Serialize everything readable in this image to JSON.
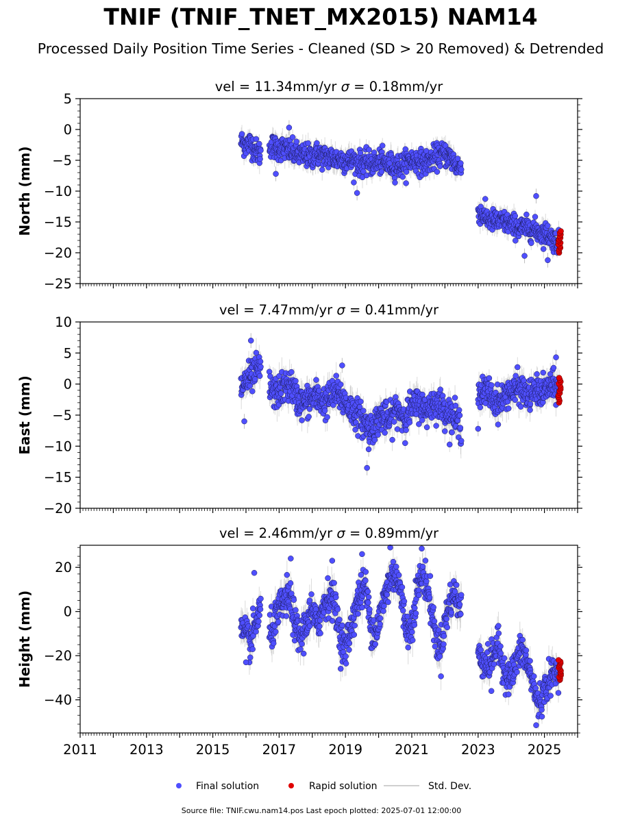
{
  "figure": {
    "title": "TNIF (TNIF_TNET_MX2015) NAM14",
    "subtitle": "Processed Daily Position Time Series - Cleaned (SD > 20 Removed) & Detrended",
    "footer": "Source file: TNIF.cwu.nam14.pos  Last epoch plotted: 2025-07-01 12:00:00"
  },
  "colors": {
    "final_solution": "#4f4fff",
    "rapid_solution": "#e00000",
    "std_dev": "#bdbdbd"
  },
  "legend": {
    "final_label": "Final solution",
    "rapid_label": "Rapid solution",
    "std_label": "Std. Dev."
  },
  "chart_data": [
    {
      "type": "scatter",
      "title_vel": "vel = 11.34mm/yr",
      "title_sigma_sym": "σ",
      "title_sigma": " = 0.18mm/yr",
      "ylabel": "North (mm)",
      "xlim": [
        2011,
        2026
      ],
      "ylim": [
        -25,
        5
      ],
      "yticks": [
        5,
        0,
        -5,
        -10,
        -15,
        -20,
        -25
      ],
      "ytick_labels": [
        "5",
        "0",
        "−5",
        "−10",
        "−15",
        "−20",
        "−25"
      ],
      "segments": [
        {
          "x": [
            2015.85,
            2016.0,
            2016.15,
            2016.3,
            2016.45,
            2016.6,
            2016.75,
            2016.9,
            2017.05,
            2017.2,
            2017.35,
            2017.5,
            2017.65,
            2017.8,
            2017.95,
            2018.1,
            2018.25,
            2018.4,
            2018.55,
            2018.7,
            2018.85,
            2019.0,
            2019.15,
            2019.3,
            2019.45,
            2019.6,
            2019.75,
            2019.9,
            2020.05,
            2020.2,
            2020.35,
            2020.5,
            2020.65,
            2020.8,
            2020.95,
            2021.1,
            2021.25,
            2021.4,
            2021.55,
            2021.7,
            2021.85,
            2022.0,
            2022.15,
            2022.3,
            2022.5
          ],
          "y": [
            -2.0,
            -2.5,
            -2.2,
            -3.5,
            -4.0,
            -3.5,
            -2.5,
            -3.0,
            -3.0,
            -3.2,
            -3.5,
            -4.0,
            -4.2,
            -4.2,
            -4.5,
            -4.0,
            -4.2,
            -4.5,
            -4.5,
            -4.8,
            -4.8,
            -5.0,
            -5.2,
            -5.2,
            -5.5,
            -5.5,
            -5.5,
            -5.5,
            -5.2,
            -5.5,
            -5.8,
            -5.8,
            -6.0,
            -5.5,
            -5.0,
            -5.0,
            -5.2,
            -5.5,
            -5.0,
            -4.5,
            -4.2,
            -4.0,
            -4.5,
            -5.5,
            -6.5
          ],
          "spread": 1.3,
          "gaps": [
            [
              2016.45,
              2016.7
            ]
          ]
        },
        {
          "x": [
            2023.0,
            2023.15,
            2023.3,
            2023.45,
            2023.6,
            2023.75,
            2023.9,
            2024.05,
            2024.2,
            2024.35,
            2024.5,
            2024.65,
            2024.8,
            2024.95,
            2025.1,
            2025.3,
            2025.45
          ],
          "y": [
            -13.0,
            -14.0,
            -14.5,
            -14.8,
            -15.0,
            -15.0,
            -15.2,
            -15.5,
            -15.8,
            -16.0,
            -16.0,
            -16.2,
            -16.5,
            -16.8,
            -17.0,
            -18.0,
            -18.5
          ],
          "spread": 1.2,
          "gaps": []
        }
      ],
      "outliers": [
        [
          2016.9,
          -7.2
        ],
        [
          2019.35,
          -10.3
        ],
        [
          2024.4,
          -20.5
        ],
        [
          2024.75,
          -10.8
        ],
        [
          2025.1,
          -21.2
        ],
        [
          2017.3,
          0.3
        ]
      ],
      "rapid": {
        "x_range": [
          2025.42,
          2025.5
        ],
        "y_range": [
          -20.0,
          -16.5
        ]
      }
    },
    {
      "type": "scatter",
      "title_vel": "vel = 7.47mm/yr",
      "title_sigma_sym": "σ",
      "title_sigma": " = 0.41mm/yr",
      "ylabel": "East (mm)",
      "xlim": [
        2011,
        2026
      ],
      "ylim": [
        -20,
        10
      ],
      "yticks": [
        10,
        5,
        0,
        -5,
        -10,
        -15,
        -20
      ],
      "ytick_labels": [
        "10",
        "5",
        "0",
        "−5",
        "−10",
        "−15",
        "−20"
      ],
      "segments": [
        {
          "x": [
            2015.85,
            2016.0,
            2016.15,
            2016.3,
            2016.45,
            2016.6,
            2016.75,
            2016.9,
            2017.05,
            2017.2,
            2017.35,
            2017.5,
            2017.65,
            2017.8,
            2017.95,
            2018.1,
            2018.25,
            2018.4,
            2018.55,
            2018.7,
            2018.85,
            2019.0,
            2019.15,
            2019.3,
            2019.45,
            2019.6,
            2019.75,
            2019.9,
            2020.05,
            2020.2,
            2020.35,
            2020.5,
            2020.65,
            2020.8,
            2020.95,
            2021.1,
            2021.25,
            2021.4,
            2021.55,
            2021.7,
            2021.85,
            2022.0,
            2022.15,
            2022.3,
            2022.5
          ],
          "y": [
            -0.5,
            0.5,
            1.0,
            2.0,
            2.5,
            1.5,
            -1.0,
            -1.5,
            -1.0,
            -0.5,
            0.0,
            -2.0,
            -3.0,
            -3.0,
            -2.5,
            -2.0,
            -2.5,
            -3.0,
            -2.0,
            -1.5,
            -2.0,
            -3.0,
            -4.0,
            -4.5,
            -5.5,
            -6.5,
            -7.0,
            -6.5,
            -5.0,
            -5.5,
            -6.0,
            -4.0,
            -4.5,
            -5.5,
            -4.0,
            -3.5,
            -3.0,
            -4.5,
            -3.5,
            -3.0,
            -3.5,
            -4.0,
            -5.0,
            -5.5,
            -7.0
          ],
          "spread": 1.7,
          "gaps": [
            [
              2016.45,
              2016.7
            ]
          ]
        },
        {
          "x": [
            2023.0,
            2023.15,
            2023.3,
            2023.45,
            2023.6,
            2023.75,
            2023.9,
            2024.05,
            2024.2,
            2024.35,
            2024.5,
            2024.65,
            2024.8,
            2024.95,
            2025.1,
            2025.3,
            2025.45
          ],
          "y": [
            -1.0,
            -1.5,
            -1.0,
            -2.5,
            -3.0,
            -2.5,
            -1.0,
            -1.5,
            -0.5,
            -1.0,
            -2.0,
            -1.5,
            -1.0,
            -1.5,
            -0.5,
            -0.5,
            -0.5
          ],
          "spread": 1.6,
          "gaps": []
        }
      ],
      "outliers": [
        [
          2015.95,
          -6.0
        ],
        [
          2016.15,
          7.0
        ],
        [
          2018.9,
          3.0
        ],
        [
          2019.65,
          -13.5
        ],
        [
          2019.7,
          -10.5
        ],
        [
          2023.0,
          -7.2
        ],
        [
          2025.35,
          4.3
        ]
      ],
      "rapid": {
        "x_range": [
          2025.42,
          2025.5
        ],
        "y_range": [
          -3.0,
          1.0
        ]
      }
    },
    {
      "type": "scatter",
      "title_vel": "vel = 2.46mm/yr",
      "title_sigma_sym": "σ",
      "title_sigma": " = 0.89mm/yr",
      "ylabel": "Height (mm)",
      "xlim": [
        2011,
        2026
      ],
      "ylim": [
        -55,
        30
      ],
      "yticks": [
        20,
        0,
        -20,
        -40
      ],
      "ytick_labels": [
        "20",
        "0",
        "−20",
        "−40"
      ],
      "segments": [
        {
          "x": [
            2015.85,
            2016.0,
            2016.15,
            2016.3,
            2016.45,
            2016.6,
            2016.75,
            2016.9,
            2017.05,
            2017.2,
            2017.35,
            2017.5,
            2017.65,
            2017.8,
            2017.95,
            2018.1,
            2018.25,
            2018.4,
            2018.55,
            2018.7,
            2018.85,
            2019.0,
            2019.15,
            2019.3,
            2019.45,
            2019.6,
            2019.75,
            2019.9,
            2020.05,
            2020.2,
            2020.35,
            2020.5,
            2020.65,
            2020.8,
            2020.95,
            2021.1,
            2021.25,
            2021.4,
            2021.55,
            2021.7,
            2021.85,
            2022.0,
            2022.15,
            2022.3,
            2022.5
          ],
          "y": [
            -8.0,
            -12.0,
            -14.0,
            -5.0,
            2.0,
            -10.0,
            -10.0,
            -4.0,
            2.0,
            6.0,
            5.0,
            -8.0,
            -12.0,
            -6.0,
            0.0,
            -5.0,
            -2.0,
            5.0,
            8.0,
            2.0,
            -12.0,
            -18.0,
            -8.0,
            2.0,
            8.0,
            12.0,
            -5.0,
            -10.0,
            -2.0,
            8.0,
            15.0,
            18.0,
            10.0,
            -5.0,
            -10.0,
            5.0,
            15.0,
            15.0,
            5.0,
            -10.0,
            -18.0,
            -5.0,
            5.0,
            8.0,
            0.0
          ],
          "spread": 5.5,
          "gaps": [
            [
              2016.45,
              2016.7
            ]
          ]
        },
        {
          "x": [
            2023.0,
            2023.15,
            2023.3,
            2023.45,
            2023.6,
            2023.75,
            2023.9,
            2024.05,
            2024.2,
            2024.35,
            2024.5,
            2024.65,
            2024.8,
            2024.95,
            2025.1,
            2025.3,
            2025.45
          ],
          "y": [
            -18.0,
            -22.0,
            -25.0,
            -20.0,
            -15.0,
            -25.0,
            -30.0,
            -28.0,
            -20.0,
            -18.0,
            -25.0,
            -32.0,
            -42.0,
            -38.0,
            -32.0,
            -28.0,
            -26.0
          ],
          "spread": 5.0,
          "gaps": []
        }
      ],
      "outliers": [
        [
          2016.25,
          17.5
        ],
        [
          2017.35,
          24.0
        ],
        [
          2018.6,
          23.0
        ],
        [
          2019.5,
          26.0
        ],
        [
          2020.35,
          29.0
        ],
        [
          2021.3,
          28.5
        ],
        [
          2024.75,
          -51.5
        ],
        [
          2016.0,
          -23.0
        ],
        [
          2023.4,
          -36.0
        ]
      ],
      "rapid": {
        "x_range": [
          2025.42,
          2025.5
        ],
        "y_range": [
          -31.0,
          -22.0
        ]
      }
    }
  ],
  "x_axis": {
    "ticks": [
      2011,
      2013,
      2015,
      2017,
      2019,
      2021,
      2023,
      2025
    ],
    "tick_labels": [
      "2011",
      "2013",
      "2015",
      "2017",
      "2019",
      "2021",
      "2023",
      "2025"
    ]
  }
}
